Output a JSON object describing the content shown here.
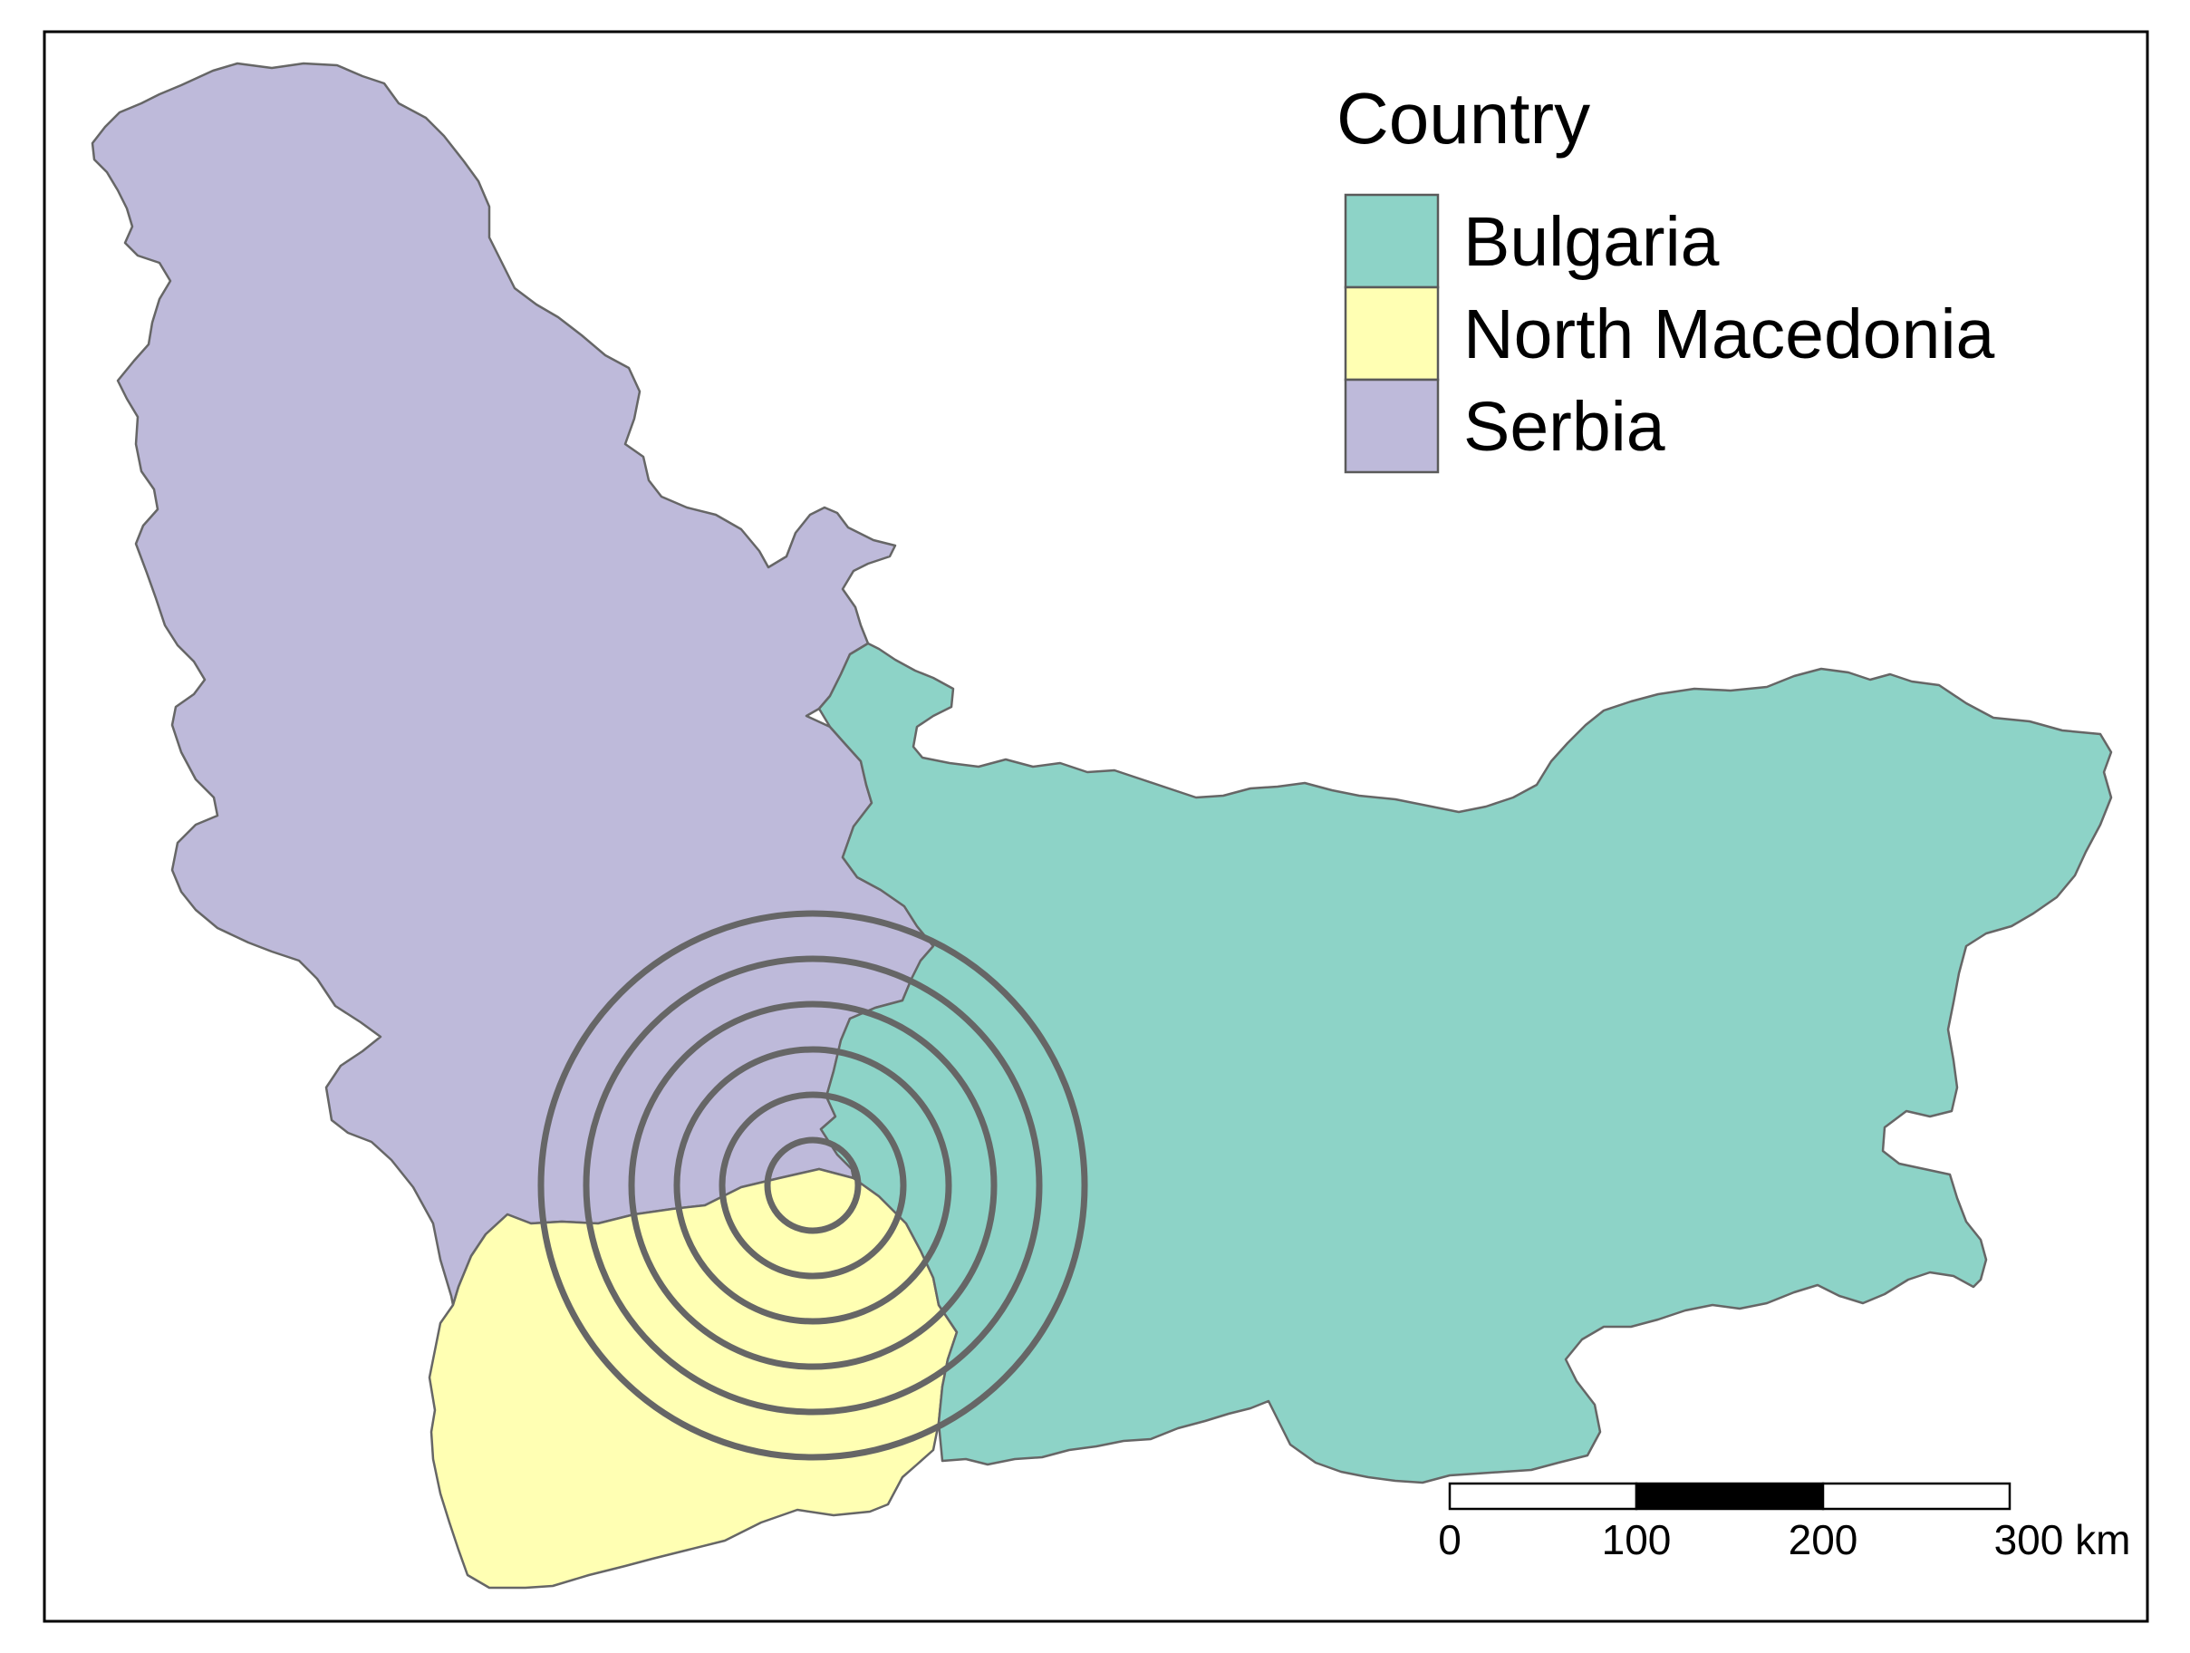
{
  "legend": {
    "title": "Country",
    "items": [
      {
        "label": "Bulgaria",
        "color": "#8DD3C7"
      },
      {
        "label": "North Macedonia",
        "color": "#FFFFB3"
      },
      {
        "label": "Serbia",
        "color": "#BEBADA"
      }
    ]
  },
  "regions": [
    {
      "name": "Serbia",
      "color": "#BEBADA"
    },
    {
      "name": "North Macedonia",
      "color": "#FFFFB3"
    },
    {
      "name": "Bulgaria",
      "color": "#8DD3C7"
    }
  ],
  "buffer_rings": {
    "count": 6,
    "color": "#666666"
  },
  "scale_bar": {
    "labels": [
      "0",
      "100",
      "200",
      "300 km"
    ],
    "unit": "km",
    "segment_colors": [
      "#ffffff",
      "#000000",
      "#ffffff"
    ]
  },
  "colors": {
    "border": "#666666",
    "frame": "#000000",
    "background": "#ffffff"
  }
}
